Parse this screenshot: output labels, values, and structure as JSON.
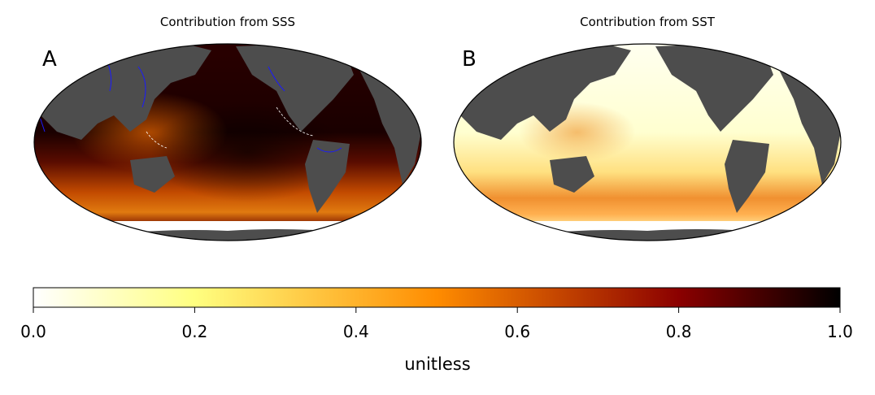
{
  "panels": [
    {
      "letter": "A",
      "title": "Contribution from SSS"
    },
    {
      "letter": "B",
      "title": "Contribution from SST"
    }
  ],
  "colorbar": {
    "label": "unitless",
    "ticks": [
      "0.0",
      "0.2",
      "0.4",
      "0.6",
      "0.8",
      "1.0"
    ],
    "min": 0.0,
    "max": 1.0,
    "colormap": [
      "#ffffff",
      "#ffff80",
      "#ff8c00",
      "#8b0000",
      "#000000"
    ]
  },
  "colors": {
    "land": "#4d4d4d",
    "river": "#1a1aff",
    "border": "#000000"
  }
}
